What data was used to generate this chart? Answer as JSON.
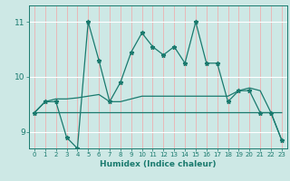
{
  "xlabel": "Humidex (Indice chaleur)",
  "xlim": [
    -0.5,
    23.5
  ],
  "ylim": [
    8.7,
    11.3
  ],
  "yticks": [
    9,
    10,
    11
  ],
  "xticks": [
    0,
    1,
    2,
    3,
    4,
    5,
    6,
    7,
    8,
    9,
    10,
    11,
    12,
    13,
    14,
    15,
    16,
    17,
    18,
    19,
    20,
    21,
    22,
    23
  ],
  "background_color": "#cde8e5",
  "grid_color_h": "#ffffff",
  "grid_color_v": "#e8b8b8",
  "line_color": "#1a7a6e",
  "series1": [
    9.35,
    9.55,
    9.55,
    8.9,
    8.7,
    11.0,
    10.3,
    9.55,
    9.9,
    10.45,
    10.8,
    10.55,
    10.4,
    10.55,
    10.25,
    11.0,
    10.25,
    10.25,
    9.55,
    9.75,
    9.75,
    9.35,
    9.35,
    8.85
  ],
  "series2": [
    9.35,
    9.35,
    9.35,
    9.35,
    9.35,
    9.35,
    9.35,
    9.35,
    9.35,
    9.35,
    9.35,
    9.35,
    9.35,
    9.35,
    9.35,
    9.35,
    9.35,
    9.35,
    9.35,
    9.35,
    9.35,
    9.35,
    9.35,
    8.85
  ],
  "series3": [
    9.35,
    9.55,
    9.6,
    9.6,
    9.62,
    9.65,
    9.68,
    9.55,
    9.55,
    9.6,
    9.65,
    9.65,
    9.65,
    9.65,
    9.65,
    9.65,
    9.65,
    9.65,
    9.65,
    9.75,
    9.8,
    9.75,
    9.35,
    9.35
  ]
}
